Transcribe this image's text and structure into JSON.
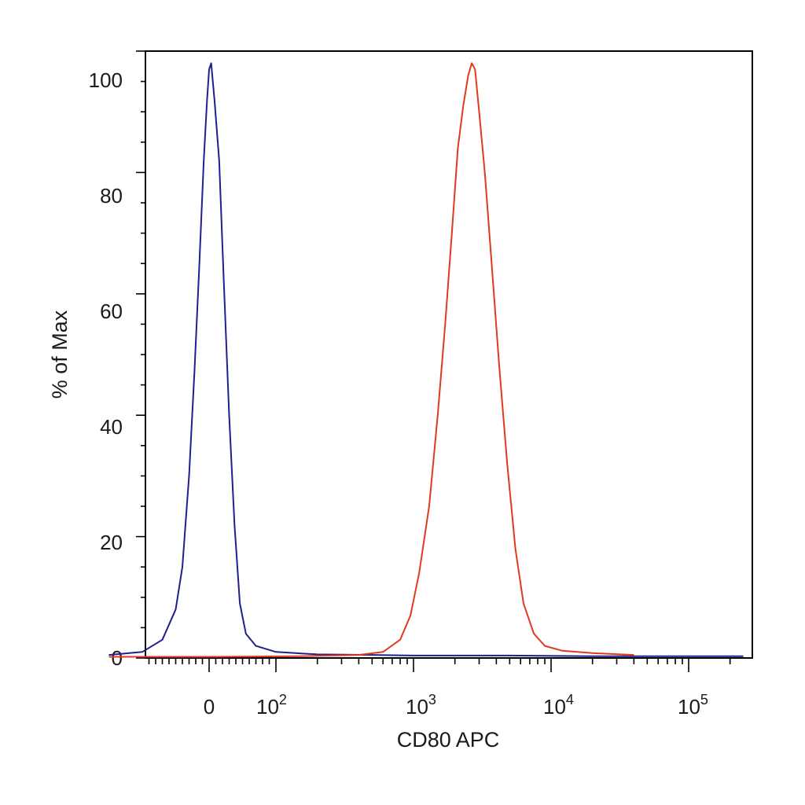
{
  "chart_data": {
    "type": "line",
    "xlabel": "CD80 APC",
    "ylabel": "% of Max",
    "ylim": [
      0,
      100
    ],
    "y_ticks": [
      "0",
      "20",
      "40",
      "60",
      "80",
      "100"
    ],
    "x_scale": "biexponential",
    "x_ticks": [
      {
        "base": "0",
        "exp": ""
      },
      {
        "base": "10",
        "exp": "2"
      },
      {
        "base": "10",
        "exp": "3"
      },
      {
        "base": "10",
        "exp": "4"
      },
      {
        "base": "10",
        "exp": "5"
      }
    ],
    "grid": false,
    "legend": "none",
    "series": [
      {
        "color": "#1f1f8f",
        "points": [
          [
            -150,
            0.5
          ],
          [
            -100,
            1
          ],
          [
            -70,
            3
          ],
          [
            -50,
            8
          ],
          [
            -40,
            15
          ],
          [
            -30,
            30
          ],
          [
            -22,
            47
          ],
          [
            -15,
            64
          ],
          [
            -8,
            82
          ],
          [
            -3,
            92
          ],
          [
            0,
            97
          ],
          [
            3,
            98
          ],
          [
            8,
            92
          ],
          [
            15,
            82
          ],
          [
            22,
            62
          ],
          [
            30,
            40
          ],
          [
            38,
            22
          ],
          [
            46,
            9
          ],
          [
            55,
            4
          ],
          [
            70,
            2
          ],
          [
            100,
            1
          ],
          [
            200,
            0.6
          ],
          [
            500,
            0.5
          ],
          [
            1000,
            0.4
          ],
          [
            5000,
            0.4
          ],
          [
            20000,
            0.3
          ],
          [
            100000,
            0.3
          ],
          [
            250000,
            0.3
          ]
        ]
      },
      {
        "color": "#e03a1e",
        "points": [
          [
            -150,
            0.2
          ],
          [
            0,
            0.2
          ],
          [
            150,
            0.3
          ],
          [
            400,
            0.5
          ],
          [
            600,
            1
          ],
          [
            800,
            3
          ],
          [
            950,
            7
          ],
          [
            1100,
            14
          ],
          [
            1300,
            25
          ],
          [
            1500,
            40
          ],
          [
            1700,
            55
          ],
          [
            1900,
            70
          ],
          [
            2100,
            84
          ],
          [
            2300,
            91
          ],
          [
            2500,
            96
          ],
          [
            2650,
            98
          ],
          [
            2800,
            97
          ],
          [
            3000,
            90
          ],
          [
            3300,
            80
          ],
          [
            3700,
            65
          ],
          [
            4200,
            48
          ],
          [
            4800,
            32
          ],
          [
            5500,
            18
          ],
          [
            6300,
            9
          ],
          [
            7500,
            4
          ],
          [
            9000,
            2
          ],
          [
            12000,
            1.2
          ],
          [
            20000,
            0.8
          ],
          [
            40000,
            0.5
          ]
        ]
      }
    ]
  }
}
